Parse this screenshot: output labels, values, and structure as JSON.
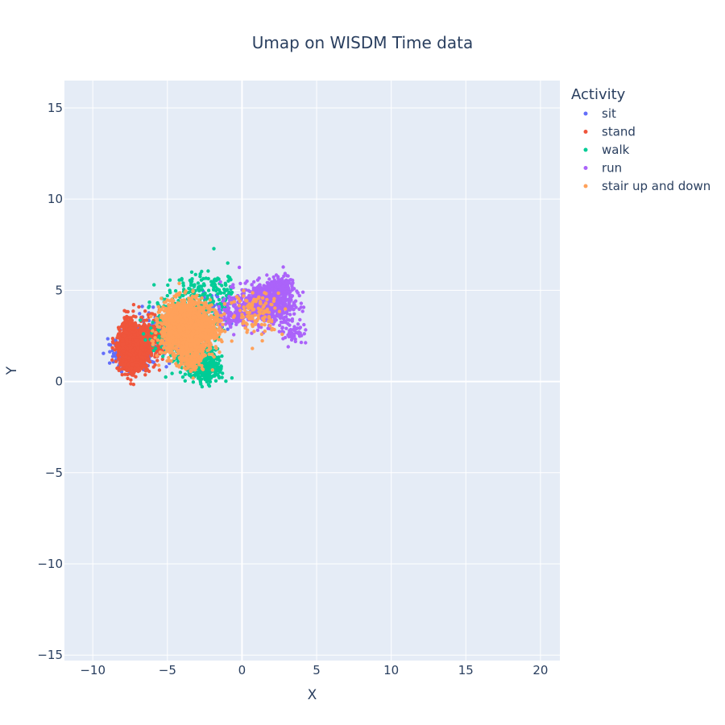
{
  "chart_data": {
    "type": "scatter",
    "title": "Umap on WISDM   Time data",
    "xlabel": "X",
    "ylabel": "Y",
    "xlim": [
      -11.9,
      21.3
    ],
    "ylim": [
      -15.3,
      16.5
    ],
    "xticks": [
      -10,
      -5,
      0,
      5,
      10,
      15,
      20
    ],
    "yticks": [
      -15,
      -10,
      -5,
      0,
      5,
      10,
      15
    ],
    "grid": true,
    "background": "#e5ecf6",
    "legend": {
      "title": "Activity",
      "placement": "top-right-outside"
    },
    "series": [
      {
        "name": "sit",
        "color": "#636efa",
        "clusters": [
          {
            "cx": -7.5,
            "cy": 1.6,
            "sx": 0.55,
            "sy": 0.45,
            "n": 450
          },
          {
            "cx": -5.5,
            "cy": 2.4,
            "sx": 0.8,
            "sy": 0.6,
            "n": 200
          },
          {
            "cx": -1.8,
            "cy": 3.9,
            "sx": 0.8,
            "sy": 0.4,
            "n": 60
          }
        ]
      },
      {
        "name": "stand",
        "color": "#ef553b",
        "clusters": [
          {
            "cx": -7.3,
            "cy": 1.7,
            "sx": 0.45,
            "sy": 0.55,
            "n": 1100
          },
          {
            "cx": -7.6,
            "cy": 2.7,
            "sx": 0.25,
            "sy": 0.5,
            "n": 250
          },
          {
            "cx": -6.2,
            "cy": 2.3,
            "sx": 0.45,
            "sy": 0.6,
            "n": 300
          }
        ]
      },
      {
        "name": "walk",
        "color": "#00cc96",
        "clusters": [
          {
            "cx": -3.8,
            "cy": 3.0,
            "sx": 1.0,
            "sy": 1.0,
            "n": 500
          },
          {
            "cx": -2.5,
            "cy": 0.8,
            "sx": 0.6,
            "sy": 0.45,
            "n": 300
          },
          {
            "cx": -1.2,
            "cy": 4.8,
            "sx": 0.4,
            "sy": 0.7,
            "n": 60
          },
          {
            "cx": -3.2,
            "cy": 5.0,
            "sx": 0.7,
            "sy": 0.5,
            "n": 60
          }
        ]
      },
      {
        "name": "run",
        "color": "#ab63fa",
        "clusters": [
          {
            "cx": 1.6,
            "cy": 4.3,
            "sx": 0.9,
            "sy": 0.55,
            "n": 650
          },
          {
            "cx": 2.6,
            "cy": 5.2,
            "sx": 0.45,
            "sy": 0.3,
            "n": 150
          },
          {
            "cx": 3.3,
            "cy": 2.8,
            "sx": 0.4,
            "sy": 0.4,
            "n": 60
          },
          {
            "cx": -0.6,
            "cy": 3.8,
            "sx": 0.5,
            "sy": 0.4,
            "n": 100
          }
        ]
      },
      {
        "name": "stair up and down",
        "color": "#ffa15a",
        "clusters": [
          {
            "cx": -3.9,
            "cy": 2.9,
            "sx": 0.75,
            "sy": 0.75,
            "n": 1500
          },
          {
            "cx": -2.4,
            "cy": 2.9,
            "sx": 0.5,
            "sy": 0.6,
            "n": 250
          },
          {
            "cx": 1.0,
            "cy": 3.8,
            "sx": 0.9,
            "sy": 0.6,
            "n": 120
          },
          {
            "cx": -3.3,
            "cy": 1.2,
            "sx": 0.35,
            "sy": 0.3,
            "n": 100
          }
        ]
      }
    ]
  }
}
